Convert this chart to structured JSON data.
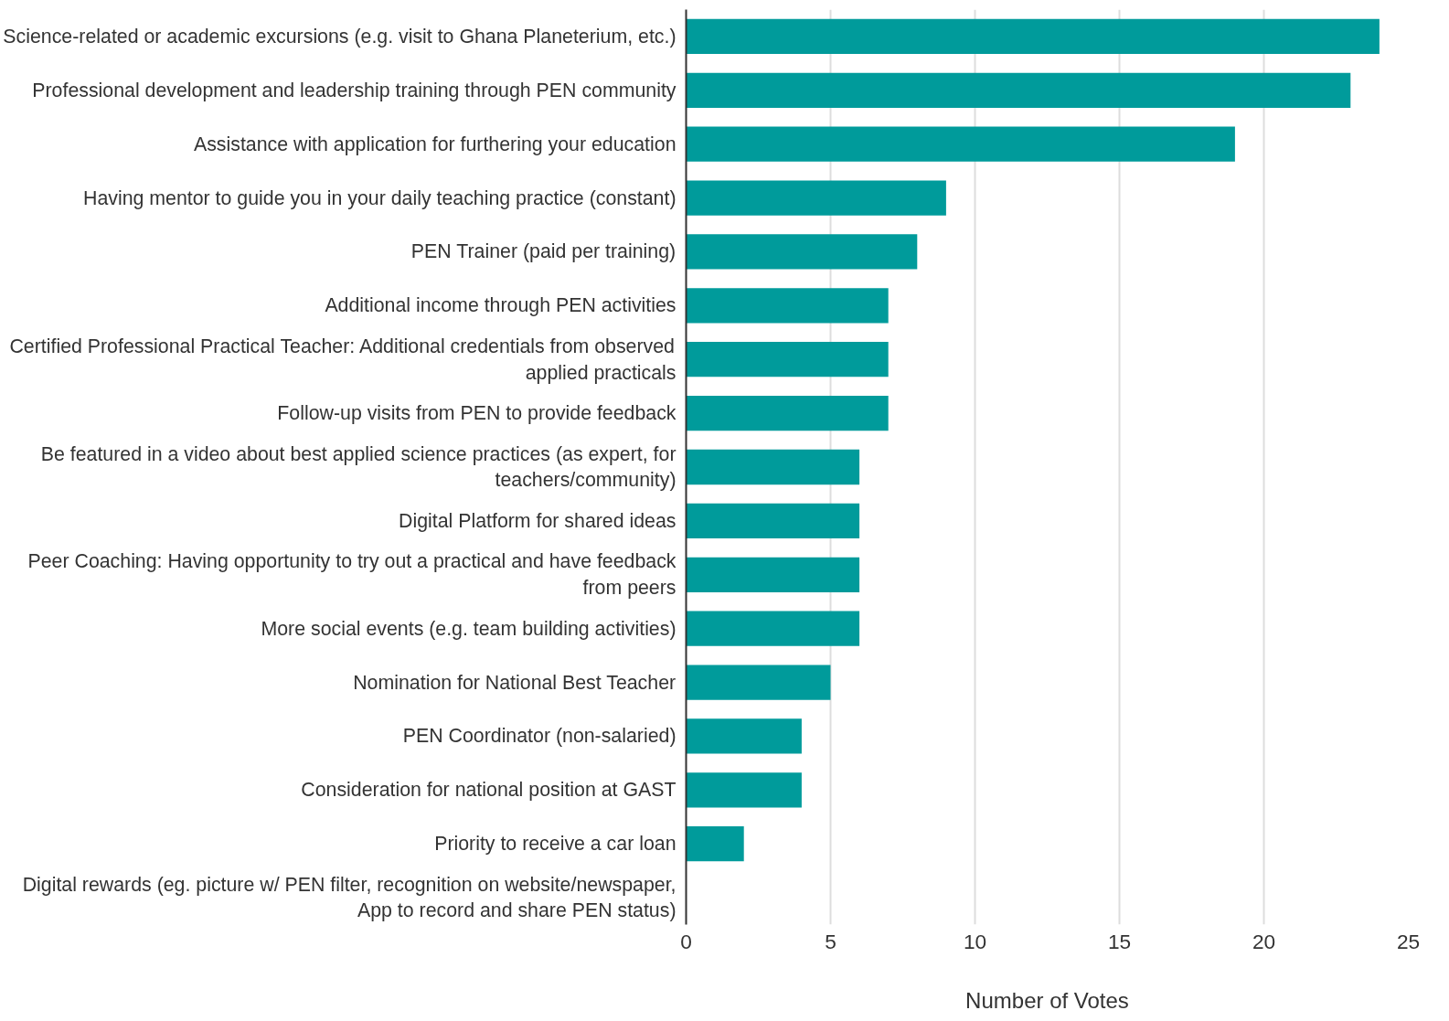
{
  "chart_data": {
    "type": "bar",
    "orientation": "horizontal",
    "xlabel": "Number of Votes",
    "categories": [
      "Science-related or academic excursions (e.g. visit to Ghana Planeterium, etc.)",
      "Professional development and leadership training through PEN community",
      "Assistance with application for furthering your education",
      "Having mentor to guide you in your daily teaching practice (constant)",
      "PEN Trainer (paid per training)",
      "Additional income through PEN activities",
      "Certified Professional Practical Teacher: Additional credentials from observed\napplied practicals",
      "Follow-up visits from PEN to provide feedback",
      "Be featured in a video about best applied science practices (as expert, for\nteachers/community)",
      "Digital Platform for shared ideas",
      "Peer Coaching: Having opportunity to try out a practical and have feedback\nfrom peers",
      "More social events (e.g. team building activities)",
      "Nomination for National Best Teacher",
      "PEN Coordinator (non-salaried)",
      "Consideration for national position at GAST",
      "Priority to receive a car loan",
      "Digital rewards (eg. picture w/ PEN filter, recognition on website/newspaper,\nApp to record and share PEN status)"
    ],
    "values": [
      24,
      23,
      19,
      9,
      8,
      7,
      7,
      7,
      6,
      6,
      6,
      6,
      5,
      4,
      4,
      2,
      0
    ],
    "color": "#009b9b",
    "xlim": [
      0,
      25
    ],
    "xticks": [
      0,
      5,
      10,
      15,
      20,
      25
    ],
    "grid": "x"
  }
}
